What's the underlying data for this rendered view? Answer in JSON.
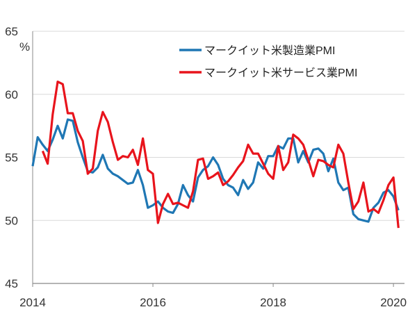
{
  "chart_data": {
    "type": "line",
    "title": "",
    "xlabel": "",
    "ylabel": "%",
    "ylim": [
      45,
      65
    ],
    "yticks": [
      "45",
      "50",
      "55",
      "60",
      "65"
    ],
    "xticks": [
      "2014",
      "2016",
      "2018",
      "2020"
    ],
    "x_start": "2014-01",
    "frequency": "monthly",
    "legend_position": "top-right",
    "grid": true,
    "series": [
      {
        "name": "マークイット米製造業PMI",
        "color": "#1F77B4",
        "start_month_index": 0,
        "values": [
          54.3,
          56.6,
          56.0,
          55.5,
          56.4,
          57.5,
          56.5,
          58.0,
          57.9,
          56.2,
          55.0,
          53.9,
          53.8,
          54.2,
          55.2,
          54.1,
          53.7,
          53.5,
          53.2,
          52.9,
          53.0,
          54.0,
          52.8,
          51.0,
          51.2,
          51.5,
          51.0,
          50.7,
          50.6,
          51.3,
          52.8,
          52.0,
          51.5,
          53.4,
          54.0,
          54.3,
          55.0,
          54.4,
          53.3,
          52.8,
          52.6,
          52.0,
          53.2,
          52.5,
          53.0,
          54.6,
          54.1,
          55.1,
          55.1,
          55.9,
          55.7,
          56.5,
          56.5,
          54.6,
          55.5,
          54.6,
          55.6,
          55.7,
          55.3,
          53.9,
          54.9,
          53.0,
          52.4,
          52.6,
          50.5,
          50.1,
          50.0,
          49.9,
          51.0,
          51.4,
          52.2,
          52.4,
          51.9,
          50.8
        ]
      },
      {
        "name": "マークイット米サービス業PMI",
        "color": "#E8141C",
        "start_month_index": 2,
        "values": [
          55.5,
          54.5,
          58.4,
          61.0,
          60.8,
          58.5,
          58.5,
          57.1,
          56.3,
          53.7,
          54.1,
          57.1,
          58.6,
          57.8,
          56.2,
          54.8,
          55.1,
          55.0,
          55.6,
          54.4,
          56.5,
          54.0,
          53.7,
          49.8,
          51.3,
          52.1,
          51.3,
          51.4,
          51.2,
          51.0,
          52.3,
          54.8,
          54.9,
          53.3,
          53.5,
          53.8,
          52.8,
          53.1,
          53.6,
          54.2,
          54.7,
          56.0,
          55.3,
          55.3,
          54.5,
          53.7,
          53.3,
          55.9,
          54.0,
          54.6,
          56.8,
          56.5,
          56.0,
          54.8,
          53.5,
          54.8,
          54.7,
          54.4,
          54.2,
          56.0,
          55.3,
          53.0,
          50.9,
          51.5,
          53.0,
          50.7,
          50.9,
          50.6,
          51.6,
          52.8,
          53.4,
          49.4
        ]
      }
    ]
  }
}
